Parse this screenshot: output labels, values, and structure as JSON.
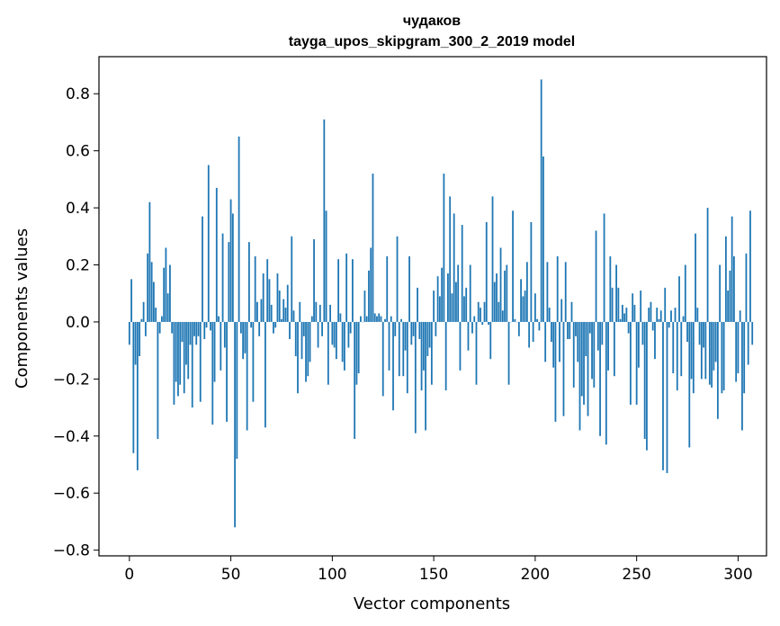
{
  "chart_data": {
    "type": "bar",
    "title": "чудаков",
    "subtitle": "tayga_upos_skipgram_300_2_2019 model",
    "xlabel": "Vector components",
    "ylabel": "Components values",
    "xlim": [
      -15,
      314
    ],
    "ylim": [
      -0.82,
      0.93
    ],
    "xticks": [
      0,
      50,
      100,
      150,
      200,
      250,
      300
    ],
    "xtick_labels": [
      "0",
      "50",
      "100",
      "150",
      "200",
      "250",
      "300"
    ],
    "yticks": [
      -0.8,
      -0.6,
      -0.4,
      -0.2,
      0.0,
      0.2,
      0.4,
      0.6,
      0.8
    ],
    "ytick_labels": [
      "−0.8",
      "−0.6",
      "−0.4",
      "−0.2",
      "0.0",
      "0.2",
      "0.4",
      "0.6",
      "0.8"
    ],
    "bar_color": "#1f77b4",
    "grid": false,
    "values": [
      -0.08,
      0.15,
      -0.46,
      -0.15,
      -0.52,
      -0.12,
      0.01,
      0.07,
      -0.05,
      0.24,
      0.42,
      0.21,
      0.14,
      0.05,
      -0.41,
      -0.04,
      0.02,
      0.19,
      0.26,
      0.1,
      0.2,
      -0.04,
      -0.29,
      -0.21,
      -0.26,
      -0.22,
      -0.07,
      -0.25,
      -0.15,
      -0.2,
      -0.08,
      -0.3,
      -0.05,
      -0.08,
      -0.05,
      -0.28,
      0.37,
      -0.06,
      -0.02,
      0.55,
      -0.03,
      -0.36,
      -0.21,
      0.47,
      0.02,
      -0.17,
      0.31,
      -0.09,
      -0.35,
      0.28,
      0.43,
      0.38,
      -0.72,
      -0.48,
      0.65,
      -0.04,
      -0.13,
      -0.11,
      -0.38,
      0.28,
      -0.02,
      -0.28,
      0.23,
      0.07,
      -0.05,
      0.08,
      0.17,
      -0.37,
      0.22,
      0.15,
      0.06,
      -0.04,
      -0.02,
      0.17,
      0.11,
      0.01,
      0.08,
      0.05,
      0.13,
      -0.06,
      0.3,
      0.04,
      -0.12,
      -0.25,
      0.07,
      -0.13,
      -0.05,
      -0.21,
      -0.19,
      -0.14,
      0.02,
      0.29,
      0.07,
      -0.09,
      0.06,
      -0.05,
      0.71,
      0.39,
      -0.22,
      0.06,
      -0.08,
      -0.09,
      -0.13,
      0.22,
      0.03,
      -0.14,
      -0.17,
      0.24,
      -0.09,
      -0.04,
      0.22,
      -0.41,
      -0.22,
      -0.18,
      0.02,
      0.0,
      0.11,
      0.02,
      0.18,
      0.26,
      0.52,
      0.03,
      0.02,
      0.03,
      0.02,
      -0.26,
      0.01,
      0.23,
      -0.17,
      0.02,
      -0.31,
      -0.05,
      0.3,
      -0.19,
      0.01,
      -0.19,
      -0.1,
      -0.25,
      0.23,
      -0.08,
      -0.05,
      -0.39,
      0.12,
      -0.06,
      -0.24,
      -0.17,
      -0.38,
      -0.12,
      -0.09,
      -0.22,
      0.11,
      -0.05,
      0.16,
      0.09,
      0.19,
      0.52,
      -0.24,
      0.17,
      0.44,
      0.1,
      0.38,
      0.14,
      0.2,
      -0.17,
      0.34,
      0.09,
      0.12,
      -0.1,
      0.2,
      -0.04,
      0.02,
      -0.22,
      0.07,
      0.05,
      -0.01,
      0.07,
      0.35,
      -0.01,
      -0.13,
      0.44,
      0.14,
      0.17,
      0.07,
      0.26,
      0.04,
      0.18,
      0.2,
      -0.22,
      0.0,
      0.39,
      0.01,
      0.0,
      -0.05,
      0.15,
      0.09,
      0.11,
      0.21,
      -0.09,
      0.35,
      -0.07,
      0.1,
      0.01,
      -0.03,
      0.85,
      0.58,
      -0.14,
      0.21,
      0.05,
      -0.07,
      -0.16,
      -0.35,
      0.23,
      -0.14,
      0.08,
      -0.33,
      0.21,
      -0.06,
      -0.06,
      0.07,
      -0.23,
      -0.05,
      -0.14,
      -0.38,
      -0.26,
      -0.29,
      -0.12,
      -0.33,
      -0.04,
      -0.2,
      -0.23,
      0.32,
      -0.1,
      -0.4,
      -0.08,
      0.38,
      -0.43,
      -0.17,
      0.23,
      0.12,
      -0.19,
      0.2,
      0.12,
      0.01,
      0.06,
      0.03,
      0.05,
      -0.04,
      -0.29,
      0.1,
      0.06,
      -0.29,
      -0.16,
      0.11,
      -0.08,
      -0.41,
      -0.45,
      0.05,
      0.07,
      -0.03,
      -0.13,
      0.05,
      0.01,
      0.04,
      -0.52,
      0.12,
      -0.53,
      -0.02,
      0.04,
      -0.18,
      0.05,
      -0.24,
      0.16,
      -0.19,
      0.02,
      0.2,
      -0.07,
      -0.44,
      -0.2,
      -0.25,
      0.31,
      0.05,
      -0.08,
      -0.2,
      -0.09,
      -0.2,
      0.4,
      -0.22,
      -0.23,
      -0.17,
      -0.14,
      -0.34,
      0.2,
      -0.25,
      -0.24,
      0.3,
      0.11,
      0.18,
      0.37,
      0.23,
      -0.21,
      -0.18,
      0.04,
      -0.38,
      -0.25,
      0.24,
      -0.15,
      0.39,
      -0.08
    ]
  }
}
